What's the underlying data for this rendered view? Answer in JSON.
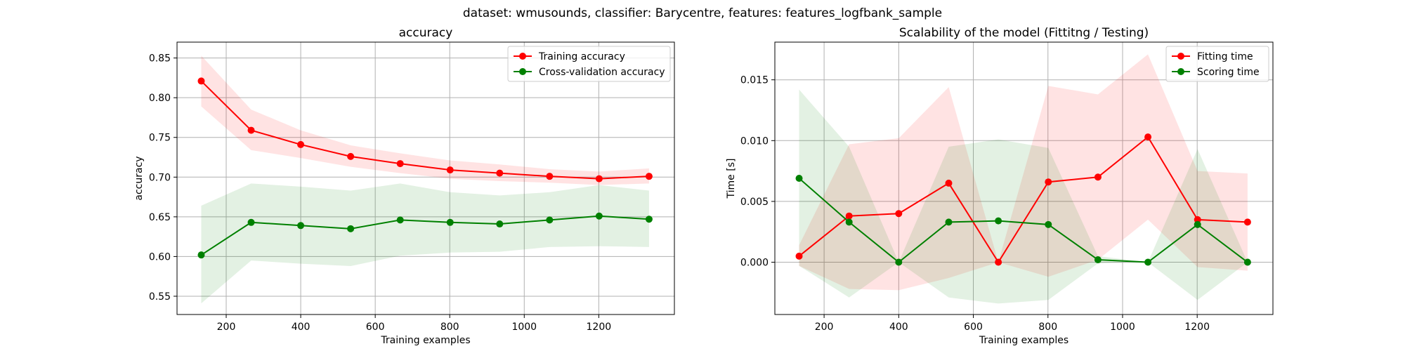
{
  "suptitle": "dataset: wmusounds, classifier: Barycentre, features: features_logfbank_sample",
  "chart_data": [
    {
      "type": "line",
      "title": "accuracy",
      "xlabel": "Training examples",
      "ylabel": "accuracy",
      "xlim": [
        68,
        1403
      ],
      "ylim": [
        0.527,
        0.87
      ],
      "xticks": [
        200,
        400,
        600,
        800,
        1000,
        1200
      ],
      "yticks": [
        0.55,
        0.6,
        0.65,
        0.7,
        0.75,
        0.8,
        0.85
      ],
      "ytick_decimals": 2,
      "grid": true,
      "legend_position": "top-right",
      "x": [
        133,
        267,
        400,
        534,
        667,
        801,
        934,
        1068,
        1201,
        1335
      ],
      "series": [
        {
          "name": "Training accuracy",
          "color": "#ff0000",
          "values": [
            0.821,
            0.759,
            0.741,
            0.726,
            0.717,
            0.709,
            0.705,
            0.701,
            0.698,
            0.701
          ],
          "band_low": [
            0.789,
            0.734,
            0.724,
            0.713,
            0.705,
            0.698,
            0.695,
            0.693,
            0.69,
            0.692
          ],
          "band_high": [
            0.853,
            0.785,
            0.759,
            0.74,
            0.73,
            0.721,
            0.716,
            0.71,
            0.707,
            0.711
          ]
        },
        {
          "name": "Cross-validation accuracy",
          "color": "#008000",
          "values": [
            0.602,
            0.643,
            0.639,
            0.635,
            0.646,
            0.643,
            0.641,
            0.646,
            0.651,
            0.647
          ],
          "band_low": [
            0.541,
            0.595,
            0.591,
            0.588,
            0.601,
            0.605,
            0.606,
            0.612,
            0.613,
            0.612
          ],
          "band_high": [
            0.664,
            0.692,
            0.688,
            0.683,
            0.692,
            0.681,
            0.677,
            0.681,
            0.69,
            0.683
          ]
        }
      ]
    },
    {
      "type": "line",
      "title": "Scalability of the model (Fittitng / Testing)",
      "xlabel": "Training examples",
      "ylabel": "Time [s]",
      "xlim": [
        68,
        1403
      ],
      "ylim": [
        -0.0043,
        0.0181
      ],
      "xticks": [
        200,
        400,
        600,
        800,
        1000,
        1200
      ],
      "yticks": [
        0.0,
        0.005,
        0.01,
        0.015
      ],
      "ytick_decimals": 3,
      "grid": true,
      "legend_position": "top-right",
      "x": [
        133,
        267,
        400,
        534,
        667,
        801,
        934,
        1068,
        1201,
        1335
      ],
      "series": [
        {
          "name": "Fitting time",
          "color": "#ff0000",
          "values": [
            0.0005,
            0.0038,
            0.004,
            0.0065,
            0.0,
            0.0066,
            0.007,
            0.0103,
            0.0035,
            0.0033
          ],
          "band_low": [
            -0.0003,
            -0.0022,
            -0.0023,
            -0.0013,
            0.0,
            -0.0012,
            0.0002,
            0.0035,
            -0.0004,
            -0.0007
          ],
          "band_high": [
            0.0014,
            0.0097,
            0.0102,
            0.0144,
            0.0,
            0.0145,
            0.0138,
            0.0171,
            0.0075,
            0.0073
          ]
        },
        {
          "name": "Scoring time",
          "color": "#008000",
          "values": [
            0.0069,
            0.0033,
            0.0,
            0.0033,
            0.0034,
            0.0031,
            0.0002,
            0.0,
            0.0031,
            0.0
          ],
          "band_low": [
            -0.0003,
            -0.0029,
            0.0,
            -0.0029,
            -0.0034,
            -0.0031,
            -0.0001,
            0.0,
            -0.0031,
            0.0
          ],
          "band_high": [
            0.0142,
            0.0095,
            0.0,
            0.0095,
            0.0101,
            0.0094,
            0.0005,
            0.0,
            0.0093,
            0.0
          ]
        }
      ]
    }
  ]
}
